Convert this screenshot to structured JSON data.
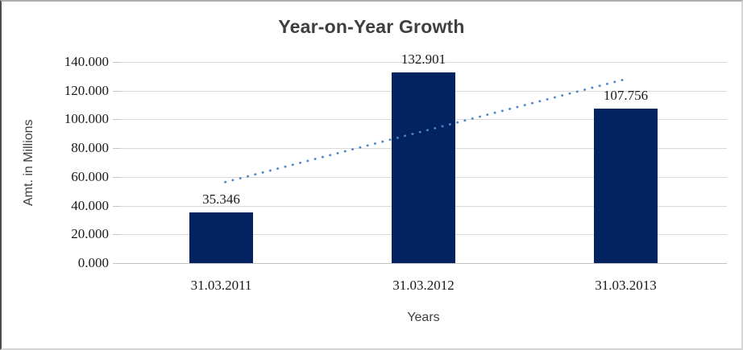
{
  "frame": {
    "background": "#ffffff",
    "border_left": "#4d4d4d",
    "border_top": "#adadad",
    "border_right": "#d6d6d6",
    "border_bottom": "#d6d6d6"
  },
  "chart_data": {
    "type": "bar",
    "title": "Year-on-Year Growth",
    "xlabel": "Years",
    "ylabel": "Amt. in Millions",
    "categories": [
      "31.03.2011",
      "31.03.2012",
      "31.03.2013"
    ],
    "values": [
      35.346,
      132.901,
      107.756
    ],
    "value_labels": [
      "35.346",
      "132.901",
      "107.756"
    ],
    "ylim": [
      0,
      140
    ],
    "yticks": [
      0,
      20,
      40,
      60,
      80,
      100,
      120,
      140
    ],
    "ytick_labels": [
      "0.000",
      "20.000",
      "40.000",
      "60.000",
      "80.000",
      "100.000",
      "120.000",
      "140.000"
    ],
    "grid": "horizontal-only",
    "legend": "none",
    "trendline": {
      "style": "dotted",
      "color": "#4a86c8",
      "start_category_index": 0,
      "end_category_index": 2,
      "start_value": 55.8,
      "end_value": 128.2
    },
    "colors": {
      "bar": "#02235f",
      "trend": "#4a86c8",
      "gridline": "#d9d9d9",
      "axis_line": "#c3c3c3",
      "title_text": "#3f3f3f",
      "tick_text": "#1a1a1a"
    }
  }
}
